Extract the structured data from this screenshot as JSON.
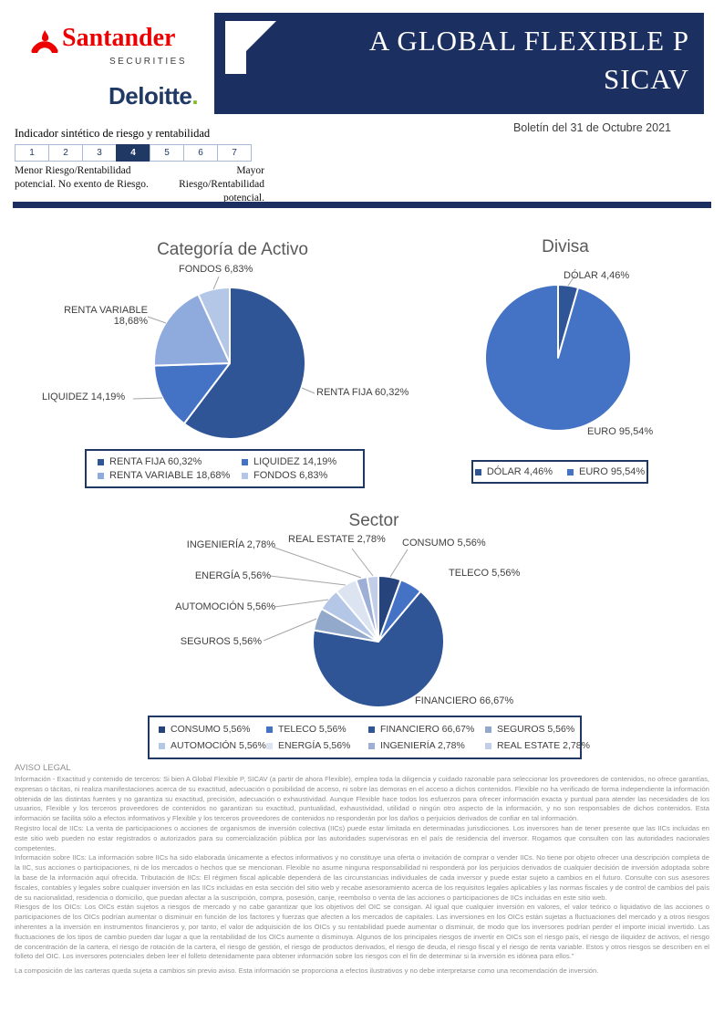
{
  "header": {
    "santander_name": "Santander",
    "santander_sub": "SECURITIES",
    "deloitte_name": "Deloitte",
    "deloitte_dot": ".",
    "title_line1": "A GLOBAL FLEXIBLE P",
    "title_line2": "SICAV",
    "bulletin_date": "Boletín del 31 de Octubre 2021"
  },
  "risk": {
    "label": "Indicador sintético de riesgo y rentabilidad",
    "levels": [
      "1",
      "2",
      "3",
      "4",
      "5",
      "6",
      "7"
    ],
    "selected_level": "4",
    "left_caption": "Menor Riesgo/Rentabilidad potencial. No exento de Riesgo.",
    "right_caption": "Mayor Riesgo/Rentabilidad potencial."
  },
  "chart_data": [
    {
      "type": "pie",
      "title": "Categoría de Activo",
      "labels": [
        "RENTA FIJA",
        "LIQUIDEZ",
        "RENTA VARIABLE",
        "FONDOS"
      ],
      "values": [
        60.32,
        14.19,
        18.68,
        6.83
      ],
      "display": [
        "RENTA FIJA 60,32%",
        "LIQUIDEZ 14,19%",
        "RENTA VARIABLE 18,68%",
        "FONDOS 6,83%"
      ],
      "colors": [
        "#2F5597",
        "#4472C4",
        "#8FAADC",
        "#B4C7E7"
      ],
      "start_angle_deg": 0,
      "direction": "clockwise",
      "legend_position": "bottom-box"
    },
    {
      "type": "pie",
      "title": "Divisa",
      "labels": [
        "DÓLAR",
        "EURO"
      ],
      "values": [
        4.46,
        95.54
      ],
      "display": [
        "DÓLAR 4,46%",
        "EURO 95,54%"
      ],
      "colors": [
        "#2F5597",
        "#4472C4"
      ],
      "start_angle_deg": 0,
      "direction": "clockwise",
      "legend_position": "bottom-box"
    },
    {
      "type": "pie",
      "title": "Sector",
      "labels": [
        "CONSUMO",
        "TELECO",
        "FINANCIERO",
        "SEGUROS",
        "AUTOMOCIÓN",
        "ENERGÍA",
        "INGENIERÍA",
        "REAL ESTATE"
      ],
      "values": [
        5.56,
        5.56,
        66.67,
        5.56,
        5.56,
        5.56,
        2.78,
        2.78
      ],
      "display": [
        "CONSUMO 5,56%",
        "TELECO 5,56%",
        "FINANCIERO 66,67%",
        "SEGUROS 5,56%",
        "AUTOMOCIÓN 5,56%",
        "ENERGÍA 5,56%",
        "INGENIERÍA 2,78%",
        "REAL ESTATE 2,78%"
      ],
      "colors": [
        "#26437C",
        "#4472C4",
        "#2F5597",
        "#93A9CC",
        "#B4C7E7",
        "#DCE3F1",
        "#9DAFD6",
        "#C2CEE8"
      ],
      "start_angle_deg": 0,
      "direction": "clockwise",
      "legend_position": "bottom-box"
    }
  ],
  "legal": {
    "title": "AVISO LEGAL",
    "paragraphs": [
      "Información - Exactitud y contenido de terceros: Si bien A Global Flexible P, SICAV (a partir de ahora Flexible), emplea toda la diligencia y cuidado razonable para seleccionar los proveedores de contenidos, no ofrece garantías, expresas o tácitas, ni realiza manifestaciones acerca de su exactitud, adecuación o posibilidad de acceso, ni sobre las demoras en el acceso a dichos contenidos. Flexible no ha verificado de forma independiente la información obtenida de las distintas fuentes y no garantiza su exactitud, precisión, adecuación o exhaustividad. Aunque Flexible hace todos los esfuerzos para ofrecer información exacta y puntual para atender las necesidades de los usuarios, Flexible y los terceros proveedores de contenidos no garantizan su exactitud, puntualidad, exhaustividad, utilidad o ningún otro aspecto de la información, y no son responsables de dichos contenidos. Esta información se facilita sólo a efectos informativos y Flexible y los terceros proveedores de contenidos no responderán por los daños o perjuicios derivados de confiar en tal información.",
      "Registro local de IICs: La venta de participaciones o acciones de organismos de inversión colectiva (IICs) puede estar limitada en determinadas jurisdicciones. Los inversores han de tener presente que las IICs incluidas en este sitio web pueden no estar registrados o autorizados para su comercialización pública por las autoridades supervisoras en el país de residencia del inversor. Rogamos que consulten con las autoridades nacionales competentes.",
      "Información sobre IICs: La información sobre IICs ha sido elaborada únicamente a efectos informativos y no constituye una oferta o invitación de comprar o vender IICs. No tiene por objeto ofrecer una descripción completa de la IIC, sus acciones o participaciones, ni de los mercados o hechos que se mencionan. Flexible no asume ninguna responsabilidad ni responderá por los perjuicios derivados de cualquier decisión de inversión adoptada sobre la base de la información aquí ofrecida. Tributación de IICs: El régimen fiscal aplicable dependerá de las circunstancias individuales de cada inversor y puede estar sujeto a cambios en el futuro. Consulte con sus asesores fiscales, contables y legales sobre cualquier inversión en las IICs incluidas en esta sección del sitio web y recabe asesoramiento acerca de los requisitos legales aplicables y las normas fiscales y de control de cambios del país de su nacionalidad, residencia o domicilio, que puedan afectar a la suscripción, compra, posesión, canje, reembolso o venta de las acciones o participaciones de IICs incluidas en este sitio web.",
      "Riesgos de los OICs: Los OICs están sujetos a riesgos de mercado y no cabe garantizar que los objetivos del OIC se consigan. Al igual que cualquier inversión en valores, el valor teórico o liquidativo de las acciones o participaciones de los OICs podrían aumentar o disminuir en función de los factores y fuerzas que afecten a los mercados de capitales. Las inversiones en los OICs están sujetas a fluctuaciones del mercado y a otros riesgos inherentes a la inversión en instrumentos financieros y, por tanto, el valor de adquisición de los OICs y su rentabilidad puede aumentar o disminuir, de modo que los inversores podrían perder el importe inicial invertido. Las fluctuaciones de los tipos de cambio pueden dar lugar a que la rentabilidad de los OICs aumente o disminuya. Algunos de los principales riesgos de invertir en OICs son el riesgo país, el riesgo de iliquidez de activos, el riesgo de concentración de la cartera, el riesgo de rotación de la cartera, el riesgo de gestión, el riesgo de productos derivados, el riesgo de deuda, el riesgo fiscal y el riesgo de renta variable. Estos y otros riesgos se describen en el folleto del OIC. Los inversores potenciales deben leer el folleto detenidamente para obtener información sobre los riesgos con el fin de determinar si la inversión es idónea para ellos.\"",
      "La composición de las carteras queda  sujeta a cambios sin previo aviso. Esta información se proporciona a efectos ilustrativos y no debe interpretarse como una recomendación  de inversión."
    ]
  }
}
